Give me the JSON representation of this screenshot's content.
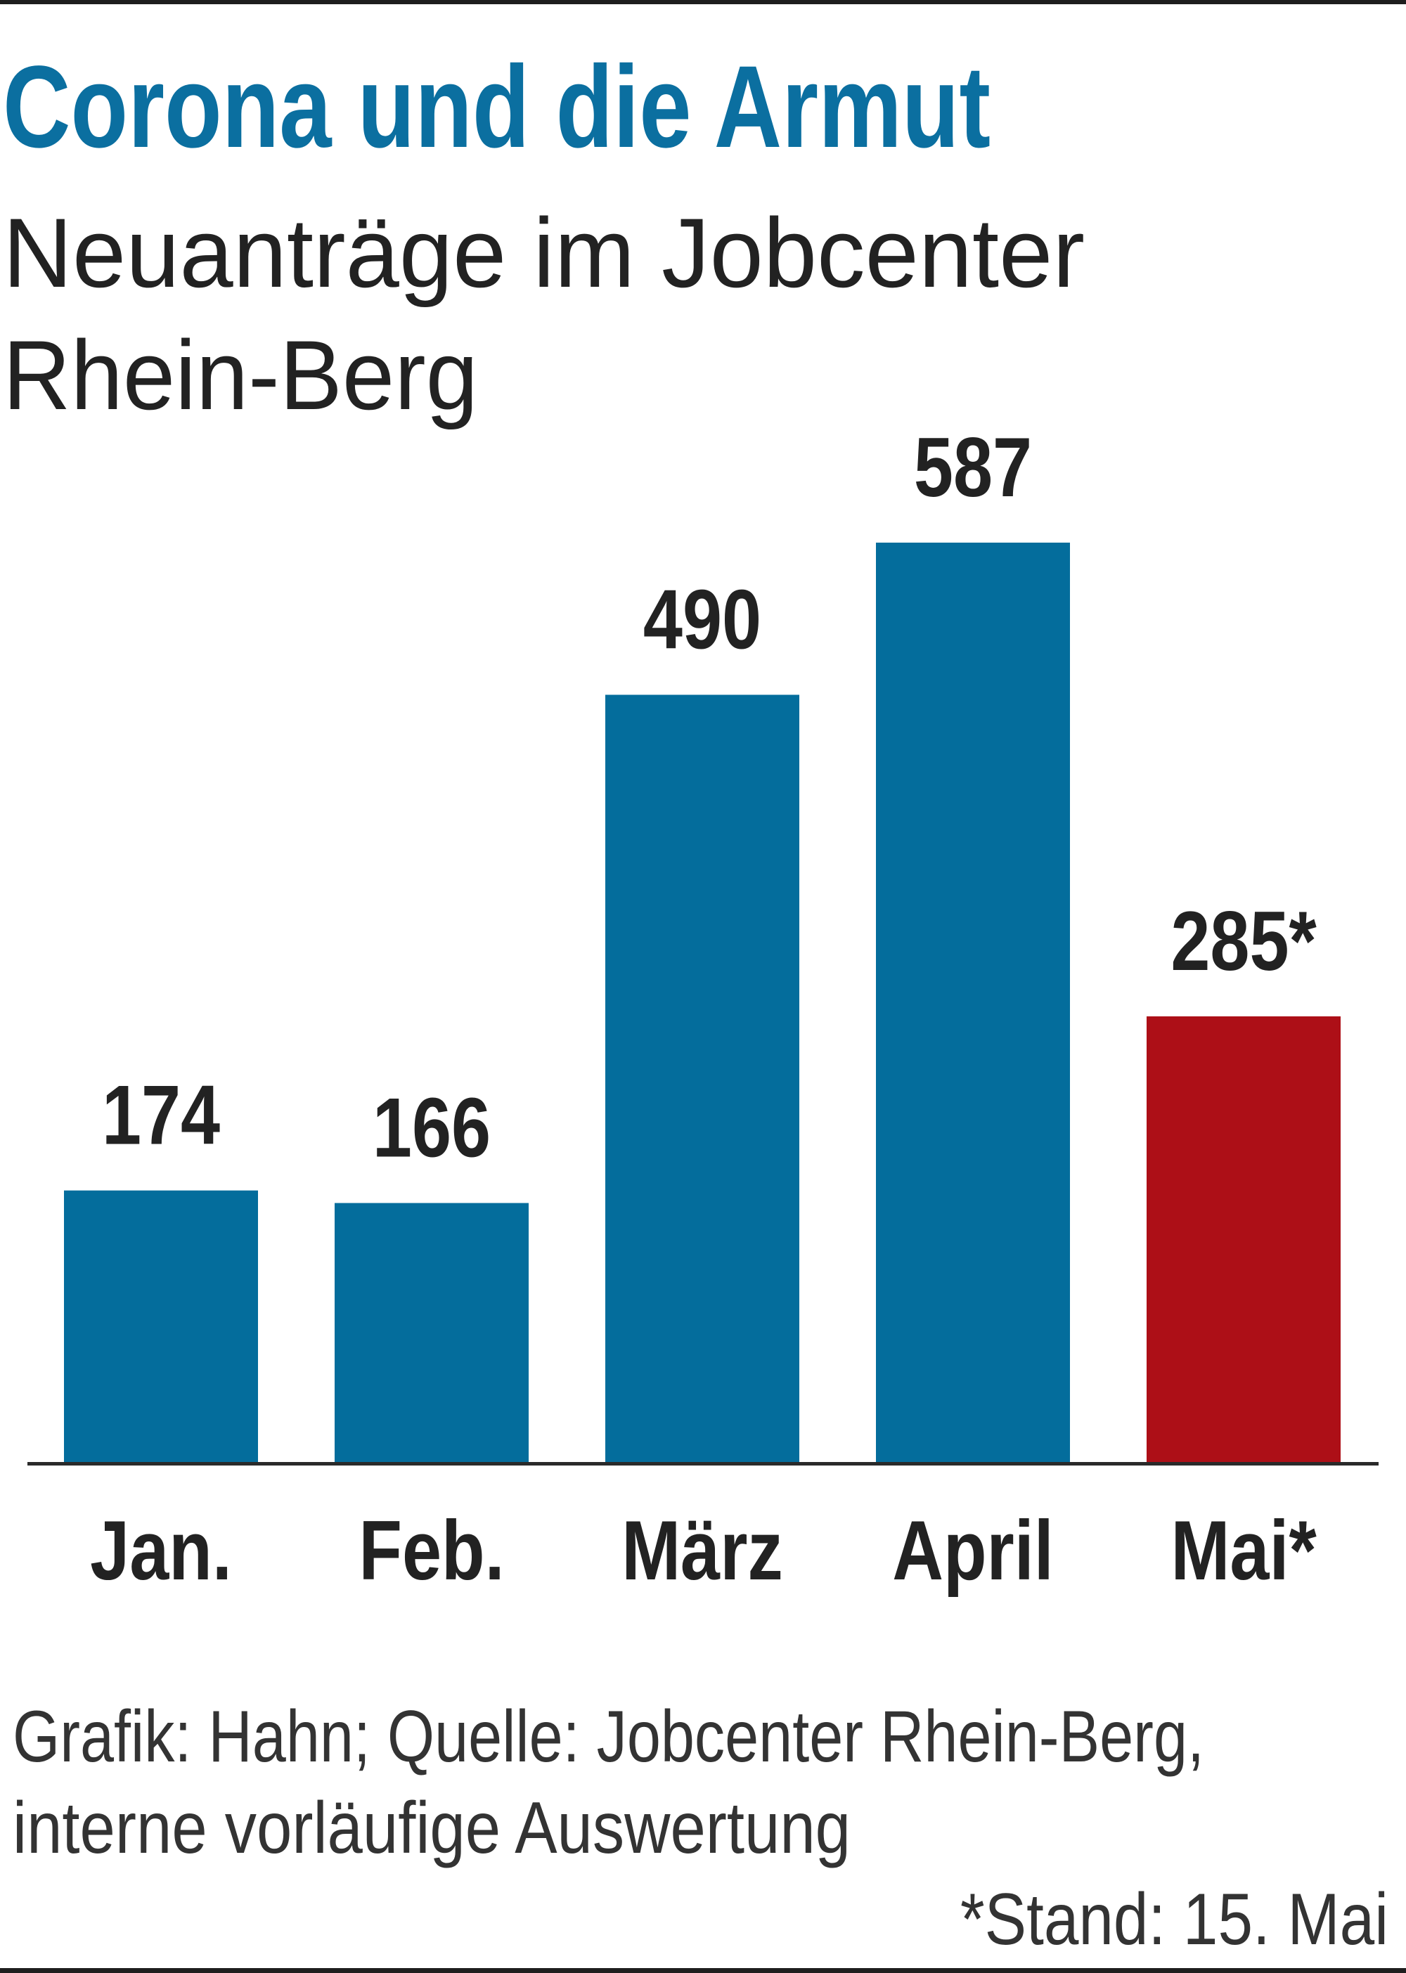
{
  "chart_data": {
    "type": "bar",
    "title": "Corona und die Armut",
    "subtitle_lines": [
      "Neuanträge im Jobcenter",
      "Rhein-Berg"
    ],
    "categories": [
      "Jan.",
      "Feb.",
      "März",
      "April",
      "Mai*"
    ],
    "values": [
      174,
      166,
      490,
      587,
      285
    ],
    "value_labels": [
      "174",
      "166",
      "490",
      "587",
      "285*"
    ],
    "bar_colors": [
      "#046d9c",
      "#046d9c",
      "#046d9c",
      "#046d9c",
      "#ad0f17"
    ],
    "ylim": [
      0,
      600
    ],
    "grid": false,
    "legend": "none",
    "source_lines": [
      "Grafik: Hahn; Quelle: Jobcenter Rhein-Berg,",
      "interne vorläufige Auswertung"
    ],
    "footnote": "*Stand: 15. Mai",
    "colors": {
      "title": "#0b6fa0",
      "axis": "#2a2a2a",
      "frame": "#1e1e1e"
    }
  }
}
